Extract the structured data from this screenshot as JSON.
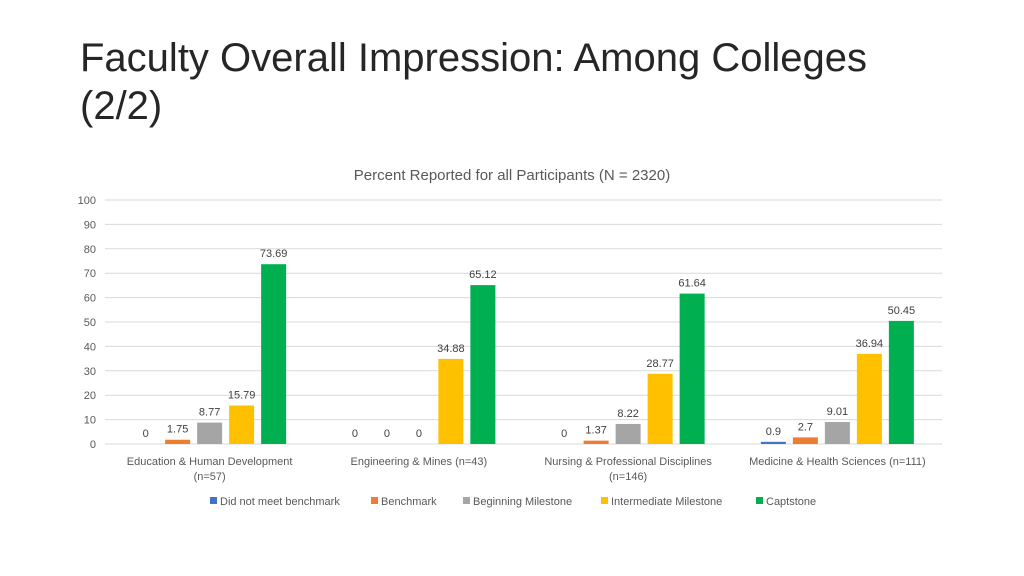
{
  "slide": {
    "title_line1": "Faculty Overall Impression: Among Colleges",
    "title_line2": "(2/2)"
  },
  "chart_data": {
    "type": "bar",
    "title": "Percent Reported for all Participants (N = 2320)",
    "xlabel": "",
    "ylabel": "",
    "ylim": [
      0,
      100
    ],
    "yticks": [
      0,
      10,
      20,
      30,
      40,
      50,
      60,
      70,
      80,
      90,
      100
    ],
    "grid": true,
    "legend_position": "bottom",
    "categories": [
      [
        "Education & Human Development",
        "(n=57)"
      ],
      [
        "Engineering & Mines (n=43)"
      ],
      [
        "Nursing & Professional Disciplines",
        "(n=146)"
      ],
      [
        "Medicine & Health Sciences (n=111)"
      ]
    ],
    "series": [
      {
        "name": "Did not meet benchmark",
        "color": "#4472c4",
        "values": [
          0,
          0,
          0,
          0.9
        ],
        "labels": [
          "0",
          "0",
          "0",
          "0.9"
        ]
      },
      {
        "name": "Benchmark",
        "color": "#ed7d31",
        "values": [
          1.75,
          0,
          1.37,
          2.7
        ],
        "labels": [
          "1.75",
          "0",
          "1.37",
          "2.7"
        ]
      },
      {
        "name": "Beginning Milestone",
        "color": "#a5a5a5",
        "values": [
          8.77,
          0,
          8.22,
          9.01
        ],
        "labels": [
          "8.77",
          "0",
          "8.22",
          "9.01"
        ]
      },
      {
        "name": "Intermediate Milestone",
        "color": "#ffc000",
        "values": [
          15.79,
          34.88,
          28.77,
          36.94
        ],
        "labels": [
          "15.79",
          "34.88",
          "28.77",
          "36.94"
        ]
      },
      {
        "name": "Captstone",
        "color": "#00b050",
        "values": [
          73.69,
          65.12,
          61.64,
          50.45
        ],
        "labels": [
          "73.69",
          "65.12",
          "61.64",
          "50.45"
        ]
      }
    ]
  }
}
